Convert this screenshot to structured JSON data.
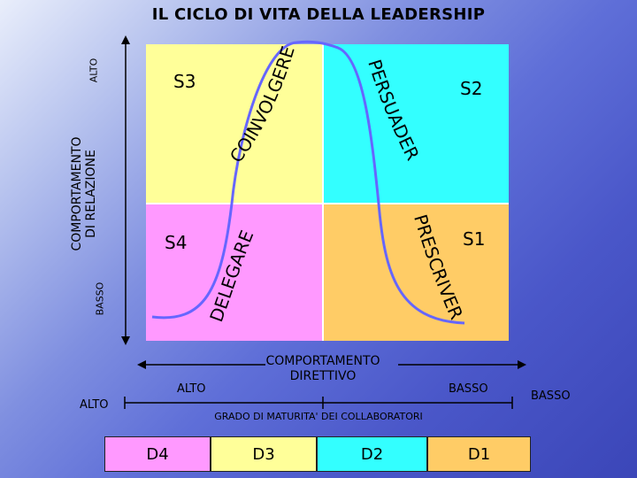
{
  "title": "IL CICLO DI VITA DELLA LEADERSHIP",
  "y_axis": {
    "label_line1": "COMPORTAMENTO",
    "label_line2": "DI RELAZIONE",
    "high": "ALTO",
    "low": "BASSO"
  },
  "quadrants": {
    "s3": {
      "label": "S3",
      "style": "COINVOLGERE",
      "color": "#ffff99"
    },
    "s2": {
      "label": "S2",
      "style": "PERSUADERE",
      "color": "#33ffff"
    },
    "s4": {
      "label": "S4",
      "style": "DELEGARE",
      "color": "#ff99ff"
    },
    "s1": {
      "label": "S1",
      "style": "PRESCRIVERE",
      "color": "#ffcc66"
    }
  },
  "x_axis": {
    "label_line1": "COMPORTAMENTO",
    "label_line2": "DIRETTIVO",
    "high": "ALTO",
    "low": "BASSO"
  },
  "maturity": {
    "high": "ALTO",
    "low": "BASSO",
    "label": "GRADO DI MATURITA' DEI COLLABORATORI"
  },
  "levels": [
    {
      "label": "D4",
      "color": "#ff99ff"
    },
    {
      "label": "D3",
      "color": "#ffff99"
    },
    {
      "label": "D2",
      "color": "#33ffff"
    },
    {
      "label": "D1",
      "color": "#ffcc66"
    }
  ]
}
